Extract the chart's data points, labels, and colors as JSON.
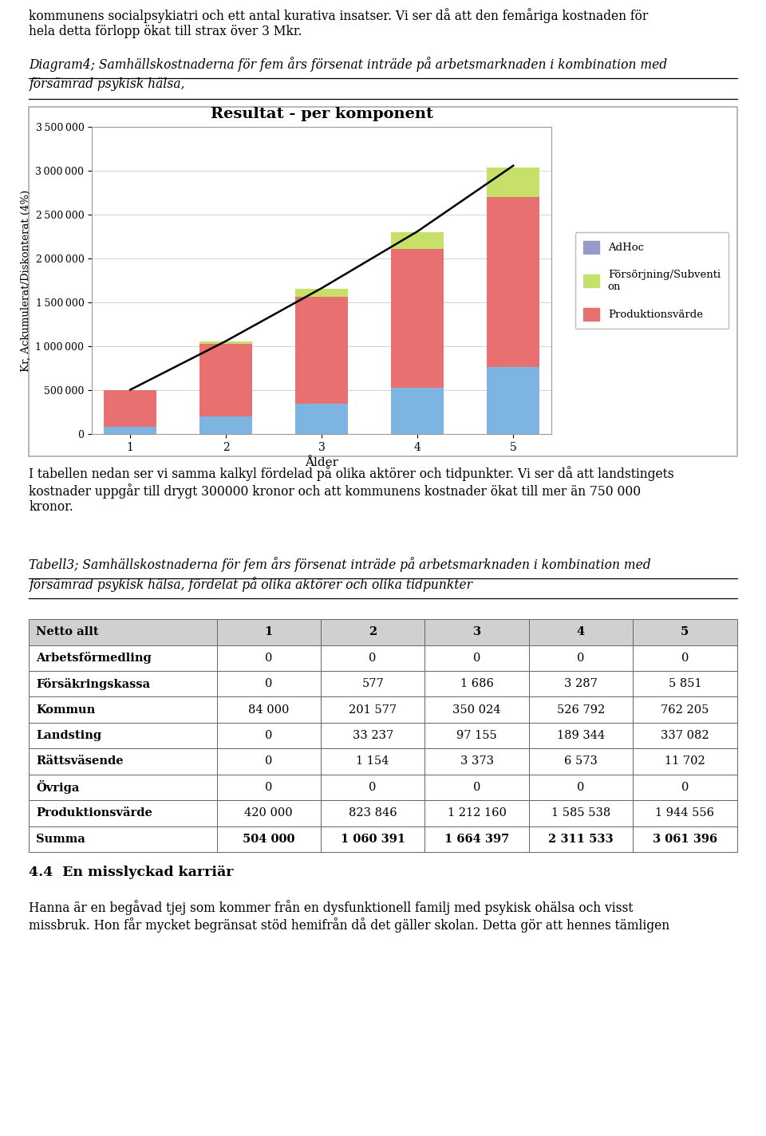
{
  "chart_title": "Resultat - per komponent",
  "chart_xlabel": "Ålder",
  "chart_ylabel": "Kr, Ackumulerat/Diskonterat (4%)",
  "categories": [
    1,
    2,
    3,
    4,
    5
  ],
  "kommun": [
    84000,
    201577,
    350024,
    526792,
    762205
  ],
  "produktionsvarde": [
    420000,
    823846,
    1212160,
    1585538,
    1944556
  ],
  "forsorjning": [
    0,
    33237,
    97155,
    189344,
    337082
  ],
  "adhoc": [
    0,
    0,
    0,
    0,
    0
  ],
  "line_values": [
    504000,
    1060391,
    1664397,
    2311533,
    3061396
  ],
  "ylim": [
    0,
    3500000
  ],
  "yticks": [
    0,
    500000,
    1000000,
    1500000,
    2000000,
    2500000,
    3000000,
    3500000
  ],
  "color_kommun": "#7EB4E2",
  "color_produktionsvarde": "#E87070",
  "color_forsorjning": "#C6E06A",
  "color_adhoc": "#9999CC",
  "legend_adhoc": "AdHoc",
  "legend_forsorjning": "Försörjning/Subventi\non",
  "legend_prod": "Produktionsvärde",
  "table_headers": [
    "Netto allt",
    "1",
    "2",
    "3",
    "4",
    "5"
  ],
  "table_rows": [
    [
      "Arbetsförmedling",
      "0",
      "0",
      "0",
      "0",
      "0"
    ],
    [
      "Försäkringskassa",
      "0",
      "577",
      "1 686",
      "3 287",
      "5 851"
    ],
    [
      "Kommun",
      "84 000",
      "201 577",
      "350 024",
      "526 792",
      "762 205"
    ],
    [
      "Landsting",
      "0",
      "33 237",
      "97 155",
      "189 344",
      "337 082"
    ],
    [
      "Rättsväsende",
      "0",
      "1 154",
      "3 373",
      "6 573",
      "11 702"
    ],
    [
      "Övriga",
      "0",
      "0",
      "0",
      "0",
      "0"
    ],
    [
      "Produktionsvärde",
      "420 000",
      "823 846",
      "1 212 160",
      "1 585 538",
      "1 944 556"
    ],
    [
      "Summa",
      "504 000",
      "1 060 391",
      "1 664 397",
      "2 311 533",
      "3 061 396"
    ]
  ],
  "top_para": "kommunens socialpsykiatri och ett antal kurativa insatser. Vi ser då att den femåriga kostnaden för\nhela detta förlopp ökat till strax över 3 Mkr.",
  "diag_caption_line1": "Diagram4; Samhällskostnaderna för fem års försenat inträde på arbetsmarknaden i kombination med",
  "diag_caption_line2": "försämrad psykisk hälsa,",
  "mid_para": "I tabellen nedan ser vi samma kalkyl fördelad på olika aktörer och tidpunkter. Vi ser då att landstingets\nkostnader uppgår till drygt 300000 kronor och att kommunens kostnader ökat till mer än 750 000\nkronor.",
  "tab_caption_line1": "Tabell3; Samhällskostnaderna för fem års försenat inträde på arbetsmarknaden i kombination med",
  "tab_caption_line2": "försämrad psykisk hälsa, fördelat på olika aktörer och olika tidpunkter",
  "section_heading": "4.4  En misslyckad karriär",
  "bottom_para": "Hanna är en begåvad tjej som kommer från en dysfunktionell familj med psykisk ohälsa och visst\nmissbruk. Hon får mycket begränsat stöd hemifrån då det gäller skolan. Detta gör att hennes tämligen"
}
